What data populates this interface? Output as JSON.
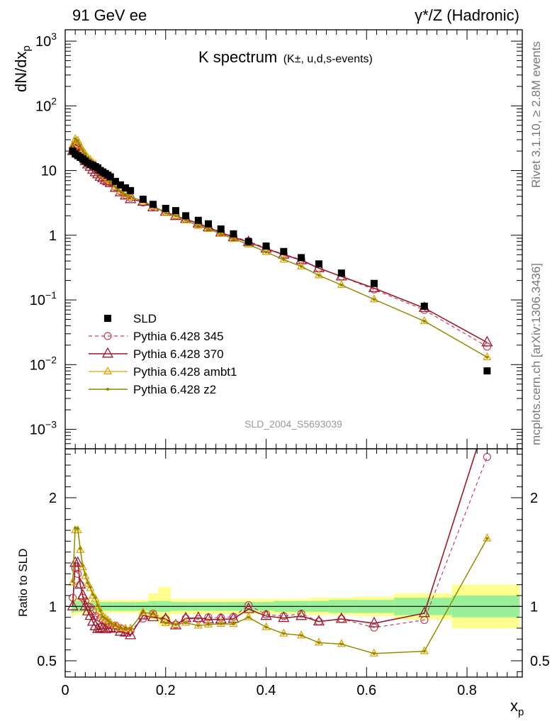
{
  "header": {
    "left": "91 GeV ee",
    "right": "γ*/Z (Hadronic)"
  },
  "side_labels": {
    "rivet": "Rivet 3.1.10, ≥ 2.8M events",
    "mcplots": "mcplots.cern.ch [arXiv:1306.3436]"
  },
  "analysis_ref": "SLD_2004_S5693039",
  "chart_data": {
    "type": "scatter",
    "title": {
      "main": "K spectrum",
      "detail": "(K±, u,d,s-events)"
    },
    "xlabel": "x_p",
    "ylabel": "dN/dx_p",
    "ratio_ylabel": "Ratio to SLD",
    "xlim": [
      0,
      0.91
    ],
    "ylim": [
      0.0005,
      1500
    ],
    "ylog": true,
    "ratio_ylim": [
      0.35,
      2.45
    ],
    "x_ticks": [
      "0",
      "0.2",
      "0.4",
      "0.6",
      "0.8"
    ],
    "y_ticks": [
      "10^-3",
      "10^-2",
      "10^-1",
      "1",
      "10",
      "10^2",
      "10^3"
    ],
    "ratio_ticks": [
      "0.5",
      "1",
      "2"
    ],
    "legend_position": "bottom-left",
    "x": [
      0.015,
      0.02,
      0.025,
      0.03,
      0.035,
      0.04,
      0.045,
      0.05,
      0.055,
      0.06,
      0.065,
      0.07,
      0.075,
      0.08,
      0.085,
      0.09,
      0.1,
      0.11,
      0.12,
      0.13,
      0.155,
      0.175,
      0.2,
      0.22,
      0.24,
      0.265,
      0.285,
      0.31,
      0.335,
      0.365,
      0.4,
      0.435,
      0.47,
      0.505,
      0.55,
      0.615,
      0.715,
      0.84
    ],
    "series": [
      {
        "name": "SLD",
        "color": "#000000",
        "values": [
          20.0,
          18.0,
          17.0,
          16.0,
          15.0,
          14.0,
          13.0,
          12.5,
          12.0,
          11.5,
          11.0,
          10.0,
          9.5,
          9.0,
          8.5,
          8.0,
          6.8,
          6.0,
          5.4,
          4.9,
          3.6,
          3.0,
          2.6,
          2.4,
          2.0,
          1.7,
          1.5,
          1.25,
          1.05,
          0.8,
          0.68,
          0.56,
          0.45,
          0.36,
          0.26,
          0.18,
          0.08,
          0.008
        ]
      },
      {
        "name": "Pythia 6.428 345",
        "color": "#c0405e",
        "values": [
          21.6,
          24.3,
          22.1,
          19.2,
          16.2,
          14.7,
          13.0,
          12.4,
          11.5,
          10.5,
          9.9,
          8.9,
          8.3,
          7.7,
          7.1,
          6.6,
          5.6,
          4.8,
          4.2,
          3.8,
          3.2,
          2.8,
          2.3,
          2.0,
          1.78,
          1.5,
          1.35,
          1.12,
          0.95,
          0.81,
          0.63,
          0.51,
          0.42,
          0.31,
          0.23,
          0.145,
          0.07,
          0.019
        ]
      },
      {
        "name": "Pythia 6.428 370",
        "color": "#a0182c",
        "values": [
          20.0,
          25.2,
          23.8,
          19.2,
          16.5,
          14.0,
          12.4,
          11.4,
          10.3,
          9.4,
          8.7,
          8.0,
          7.6,
          7.1,
          6.8,
          6.4,
          5.4,
          4.6,
          4.1,
          3.6,
          3.3,
          2.7,
          2.3,
          1.98,
          1.78,
          1.52,
          1.32,
          1.1,
          0.93,
          0.78,
          0.62,
          0.5,
          0.41,
          0.31,
          0.23,
          0.152,
          0.075,
          0.022
        ]
      },
      {
        "name": "Pythia 6.428 ambt1",
        "color": "#e8a000",
        "values": [
          24.4,
          30.6,
          28.9,
          24.3,
          20.4,
          17.9,
          15.7,
          14.6,
          13.2,
          12.3,
          11.0,
          9.5,
          8.6,
          8.0,
          7.4,
          6.8,
          5.6,
          4.8,
          4.3,
          3.9,
          3.4,
          2.8,
          2.2,
          2.0,
          1.7,
          1.4,
          1.25,
          1.05,
          0.88,
          0.72,
          0.55,
          0.42,
          0.33,
          0.24,
          0.17,
          0.102,
          0.047,
          0.013
        ]
      },
      {
        "name": "Pythia 6.428 z2",
        "color": "#8a8a00",
        "values": [
          24.6,
          31.0,
          29.2,
          24.5,
          20.6,
          18.1,
          15.8,
          14.7,
          13.3,
          12.4,
          11.1,
          9.6,
          8.6,
          8.0,
          7.4,
          6.8,
          5.6,
          4.8,
          4.3,
          3.9,
          3.4,
          2.8,
          2.2,
          2.0,
          1.7,
          1.4,
          1.25,
          1.05,
          0.88,
          0.72,
          0.55,
          0.42,
          0.33,
          0.24,
          0.17,
          0.102,
          0.047,
          0.013
        ]
      }
    ],
    "uncertainty_bands": {
      "x_edges": [
        0.0125,
        0.0175,
        0.0225,
        0.0275,
        0.0325,
        0.0375,
        0.0425,
        0.0475,
        0.0525,
        0.0575,
        0.0625,
        0.0675,
        0.0725,
        0.0775,
        0.0825,
        0.0875,
        0.095,
        0.105,
        0.115,
        0.125,
        0.14,
        0.165,
        0.185,
        0.21,
        0.23,
        0.25,
        0.275,
        0.295,
        0.32,
        0.35,
        0.38,
        0.415,
        0.45,
        0.485,
        0.525,
        0.575,
        0.655,
        0.77,
        0.905
      ],
      "inner": [
        0.06,
        0.05,
        0.05,
        0.05,
        0.05,
        0.05,
        0.04,
        0.04,
        0.04,
        0.04,
        0.04,
        0.04,
        0.04,
        0.04,
        0.04,
        0.04,
        0.04,
        0.04,
        0.04,
        0.04,
        0.04,
        0.05,
        0.05,
        0.04,
        0.04,
        0.04,
        0.04,
        0.04,
        0.04,
        0.04,
        0.04,
        0.05,
        0.05,
        0.05,
        0.06,
        0.06,
        0.08,
        0.1,
        0.55
      ],
      "outer": [
        0.09,
        0.08,
        0.07,
        0.07,
        0.07,
        0.07,
        0.06,
        0.06,
        0.06,
        0.06,
        0.06,
        0.06,
        0.06,
        0.06,
        0.06,
        0.06,
        0.06,
        0.06,
        0.06,
        0.06,
        0.06,
        0.12,
        0.18,
        0.07,
        0.07,
        0.07,
        0.07,
        0.07,
        0.07,
        0.07,
        0.07,
        0.07,
        0.07,
        0.08,
        0.08,
        0.09,
        0.12,
        0.2,
        1.0
      ]
    }
  }
}
